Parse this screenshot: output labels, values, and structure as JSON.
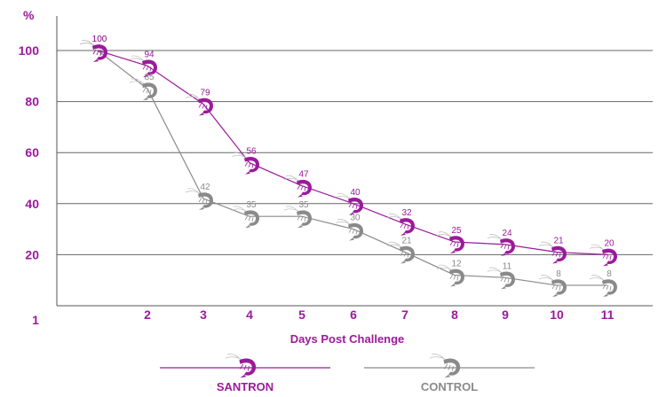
{
  "chart_data": {
    "type": "line",
    "y_unit": "%",
    "xlabel": "Days Post Challenge",
    "x": [
      1,
      2,
      3,
      4,
      5,
      6,
      7,
      8,
      9,
      10,
      11
    ],
    "y_ticks": [
      20,
      40,
      60,
      80,
      100
    ],
    "ylim": [
      0,
      110
    ],
    "grid": "horizontal",
    "legend_placement": "bottom",
    "series": [
      {
        "name": "SANTRON",
        "color": "#9b1a9b",
        "icon": "shrimp-icon",
        "values": [
          100,
          94,
          79,
          56,
          47,
          40,
          32,
          25,
          24,
          21,
          20
        ]
      },
      {
        "name": "CONTROL",
        "color": "#8a8a8a",
        "icon": "shrimp-icon",
        "values": [
          100,
          85,
          42,
          35,
          35,
          30,
          21,
          12,
          11,
          8,
          8
        ]
      }
    ]
  }
}
